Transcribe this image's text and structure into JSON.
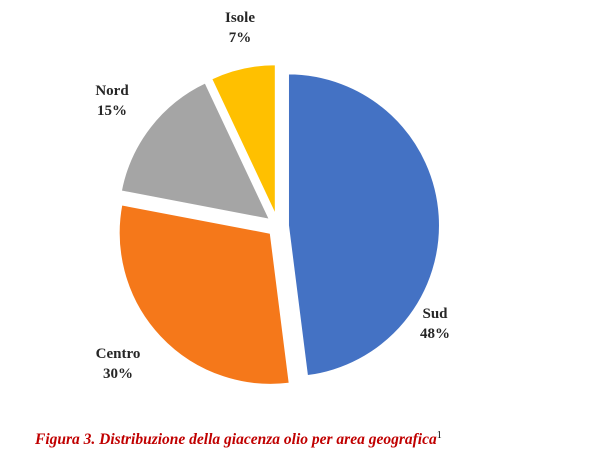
{
  "chart_data": {
    "type": "pie",
    "categories": [
      "Sud",
      "Centro",
      "Nord",
      "Isole"
    ],
    "values": [
      48,
      30,
      15,
      7
    ],
    "value_labels": [
      "48%",
      "30%",
      "15%",
      "7%"
    ],
    "colors": [
      "#4472c4",
      "#f5781a",
      "#a5a5a5",
      "#ffc000"
    ],
    "caption": "Figura 3. Distribuzione della giacenza olio per area geografica",
    "caption_note": "1"
  }
}
